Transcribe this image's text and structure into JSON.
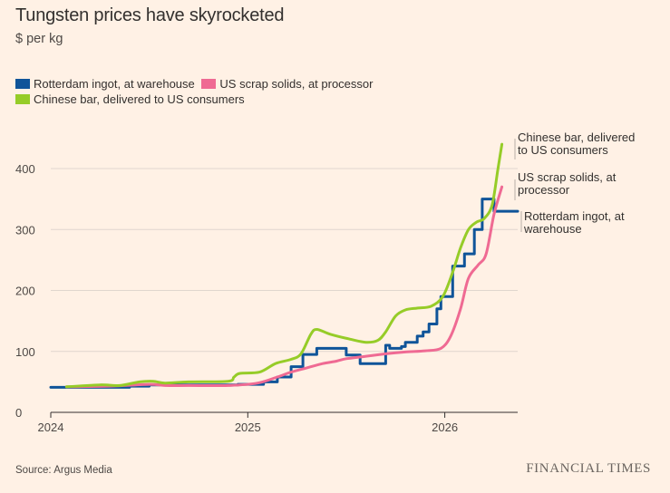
{
  "chart_data": {
    "type": "line",
    "title": "Tungsten prices have skyrocketed",
    "subtitle": "$ per kg",
    "source": "Source: Argus Media",
    "brand": "FINANCIAL TIMES",
    "xlabel": "",
    "ylabel": "",
    "xlim": [
      2024.0,
      2026.37
    ],
    "ylim": [
      0,
      440
    ],
    "yticks": [
      0,
      100,
      200,
      300,
      400
    ],
    "xticks": [
      {
        "value": 2024,
        "label": "2024"
      },
      {
        "value": 2025,
        "label": "2025"
      },
      {
        "value": 2026,
        "label": "2026"
      }
    ],
    "grid": true,
    "legend_position": "top-left",
    "series": [
      {
        "name": "Rotterdam ingot, at warehouse",
        "end_label": [
          "Rotterdam ingot, at",
          "warehouse"
        ],
        "color": "#0f5499",
        "step": true,
        "points": [
          [
            2024.0,
            41
          ],
          [
            2024.3,
            41
          ],
          [
            2024.4,
            43
          ],
          [
            2024.5,
            45
          ],
          [
            2024.8,
            45
          ],
          [
            2024.95,
            46
          ],
          [
            2025.08,
            50
          ],
          [
            2025.15,
            58
          ],
          [
            2025.22,
            75
          ],
          [
            2025.28,
            95
          ],
          [
            2025.35,
            105
          ],
          [
            2025.48,
            105
          ],
          [
            2025.5,
            94
          ],
          [
            2025.55,
            94
          ],
          [
            2025.57,
            80
          ],
          [
            2025.68,
            80
          ],
          [
            2025.7,
            110
          ],
          [
            2025.72,
            105
          ],
          [
            2025.78,
            108
          ],
          [
            2025.8,
            115
          ],
          [
            2025.86,
            125
          ],
          [
            2025.89,
            132
          ],
          [
            2025.92,
            145
          ],
          [
            2025.96,
            170
          ],
          [
            2025.98,
            190
          ],
          [
            2026.04,
            240
          ],
          [
            2026.1,
            260
          ],
          [
            2026.15,
            300
          ],
          [
            2026.19,
            350
          ],
          [
            2026.23,
            350
          ],
          [
            2026.25,
            330
          ],
          [
            2026.37,
            330
          ]
        ]
      },
      {
        "name": "US scrap solids, at processor",
        "end_label": [
          "US scrap solids, at",
          "processor"
        ],
        "color": "#ef6a93",
        "step": false,
        "points": [
          [
            2024.08,
            42
          ],
          [
            2024.3,
            43
          ],
          [
            2024.5,
            46
          ],
          [
            2024.58,
            44
          ],
          [
            2024.7,
            44
          ],
          [
            2024.9,
            44
          ],
          [
            2025.05,
            48
          ],
          [
            2025.15,
            58
          ],
          [
            2025.22,
            66
          ],
          [
            2025.3,
            73
          ],
          [
            2025.38,
            80
          ],
          [
            2025.45,
            84
          ],
          [
            2025.5,
            88
          ],
          [
            2025.6,
            92
          ],
          [
            2025.7,
            96
          ],
          [
            2025.8,
            99
          ],
          [
            2025.9,
            101
          ],
          [
            2025.98,
            105
          ],
          [
            2026.03,
            125
          ],
          [
            2026.08,
            170
          ],
          [
            2026.12,
            220
          ],
          [
            2026.17,
            242
          ],
          [
            2026.21,
            260
          ],
          [
            2026.25,
            325
          ],
          [
            2026.29,
            370
          ]
        ]
      },
      {
        "name": "Chinese bar, delivered to US consumers",
        "end_label": [
          "Chinese bar, delivered",
          "to US consumers"
        ],
        "color": "#96cc28",
        "step": false,
        "points": [
          [
            2024.08,
            42
          ],
          [
            2024.25,
            45
          ],
          [
            2024.35,
            44
          ],
          [
            2024.45,
            50
          ],
          [
            2024.52,
            51
          ],
          [
            2024.58,
            48
          ],
          [
            2024.7,
            50
          ],
          [
            2024.9,
            51
          ],
          [
            2024.93,
            58
          ],
          [
            2024.96,
            64
          ],
          [
            2025.06,
            66
          ],
          [
            2025.14,
            80
          ],
          [
            2025.22,
            87
          ],
          [
            2025.27,
            96
          ],
          [
            2025.32,
            128
          ],
          [
            2025.35,
            136
          ],
          [
            2025.42,
            128
          ],
          [
            2025.52,
            120
          ],
          [
            2025.6,
            115
          ],
          [
            2025.66,
            118
          ],
          [
            2025.7,
            132
          ],
          [
            2025.75,
            158
          ],
          [
            2025.8,
            168
          ],
          [
            2025.86,
            171
          ],
          [
            2025.93,
            174
          ],
          [
            2025.99,
            190
          ],
          [
            2026.04,
            230
          ],
          [
            2026.08,
            270
          ],
          [
            2026.12,
            300
          ],
          [
            2026.16,
            312
          ],
          [
            2026.2,
            318
          ],
          [
            2026.24,
            340
          ],
          [
            2026.27,
            400
          ],
          [
            2026.29,
            440
          ]
        ]
      }
    ]
  }
}
